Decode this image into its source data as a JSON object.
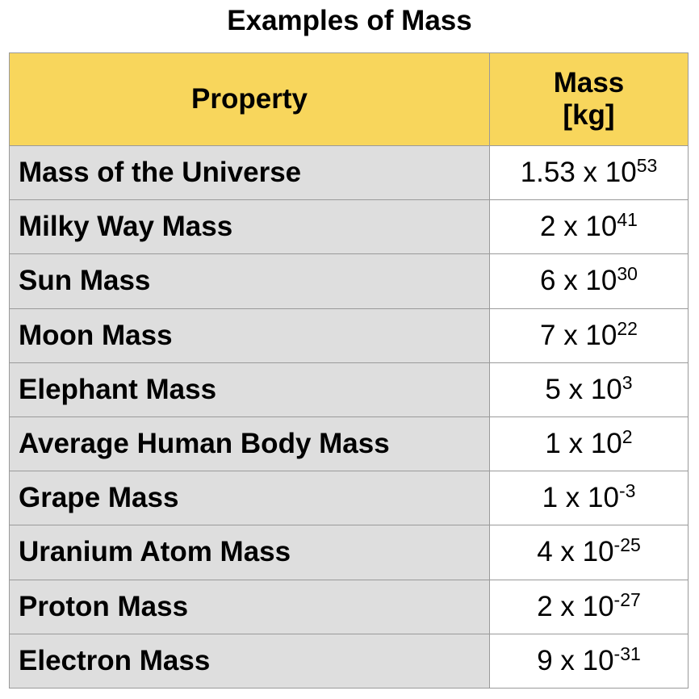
{
  "title": "Examples of Mass",
  "header": {
    "property": "Property",
    "mass_line1": "Mass",
    "mass_line2": "[kg]"
  },
  "rows": [
    {
      "property": "Mass of the Universe",
      "coefficient": "1.53 x 10",
      "exponent": "53"
    },
    {
      "property": "Milky Way Mass",
      "coefficient": "2 x 10",
      "exponent": "41"
    },
    {
      "property": "Sun Mass",
      "coefficient": "6 x 10",
      "exponent": "30"
    },
    {
      "property": "Moon Mass",
      "coefficient": "7 x 10",
      "exponent": "22"
    },
    {
      "property": "Elephant Mass",
      "coefficient": "5 x 10",
      "exponent": "3"
    },
    {
      "property": "Average Human Body Mass",
      "coefficient": "1 x 10",
      "exponent": "2"
    },
    {
      "property": "Grape Mass",
      "coefficient": "1 x 10",
      "exponent": "-3"
    },
    {
      "property": "Uranium Atom Mass",
      "coefficient": "4 x 10",
      "exponent": "-25"
    },
    {
      "property": "Proton Mass",
      "coefficient": "2 x 10",
      "exponent": "-27"
    },
    {
      "property": "Electron Mass",
      "coefficient": "9 x 10",
      "exponent": "-31"
    }
  ],
  "colors": {
    "header_bg": "#f8d65c",
    "property_cell_bg": "#dedede",
    "value_cell_bg": "#ffffff",
    "grid_line": "#9a9a9a"
  }
}
